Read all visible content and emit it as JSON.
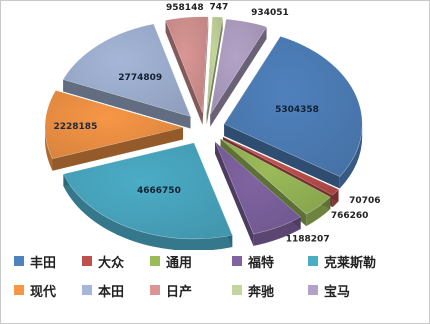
{
  "chart_data": {
    "type": "pie",
    "style": "3d-exploded",
    "legend_position": "bottom",
    "slices": [
      {
        "name": "丰田",
        "value": 5304358,
        "color": "#4f81bd",
        "label": "5304358"
      },
      {
        "name": "大众",
        "value": 70706,
        "color": "#c0504d",
        "label": "70706"
      },
      {
        "name": "通用",
        "value": 766260,
        "color": "#9bbb59",
        "label": "766260"
      },
      {
        "name": "福特",
        "value": 1188207,
        "color": "#8064a2",
        "label": "1188207"
      },
      {
        "name": "克莱斯勒",
        "value": 4666750,
        "color": "#4bacc6",
        "label": "4666750"
      },
      {
        "name": "现代",
        "value": 2228185,
        "color": "#f79646",
        "label": "2228185"
      },
      {
        "name": "本田",
        "value": 2774809,
        "color": "#a5b6d8",
        "label": "2774809"
      },
      {
        "name": "日产",
        "value": 958148,
        "color": "#d99694",
        "label": "958148"
      },
      {
        "name": "奔驰",
        "value": 747,
        "color": "#c3d69b",
        "label": "747"
      },
      {
        "name": "宝马",
        "value": 934051,
        "color": "#b3a2c7",
        "label": "934051"
      }
    ]
  }
}
